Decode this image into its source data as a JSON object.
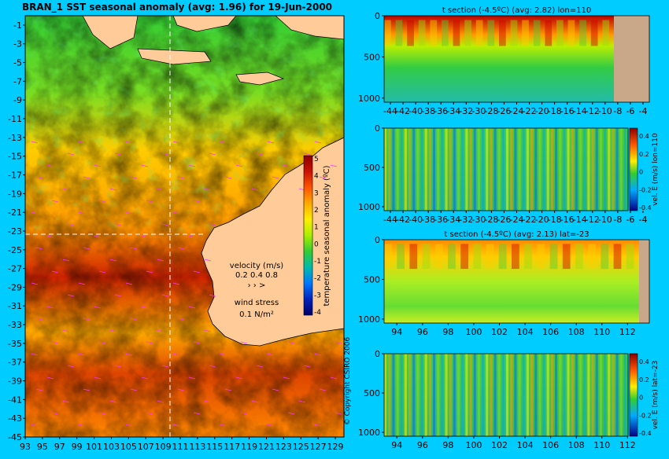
{
  "background_color": "#00ccff",
  "map": {
    "title": "BRAN_1 SST seasonal anomaly (avg: 1.96) for 19-Jun-2000",
    "lat_ticks": [
      "-1",
      "-3",
      "-5",
      "-7",
      "-9",
      "-11",
      "-13",
      "-15",
      "-17",
      "-19",
      "-21",
      "-23",
      "-25",
      "-27",
      "-29",
      "-31",
      "-33",
      "-35",
      "-37",
      "-39",
      "-41",
      "-43",
      "-45"
    ],
    "lon_ticks": [
      "93",
      "95",
      "97",
      "99",
      "101",
      "103",
      "105",
      "107",
      "109",
      "111",
      "113",
      "115",
      "117",
      "119",
      "121",
      "123",
      "125",
      "127",
      "129"
    ],
    "colorbar": {
      "label": "temperature seasonal anomaly (ºC)",
      "ticks": [
        "5",
        "4",
        "3",
        "2",
        "1",
        "0",
        "-1",
        "-2",
        "-3",
        "-4"
      ],
      "colors": [
        "#8b0000",
        "#cc1100",
        "#ff5500",
        "#ffaa00",
        "#ffee00",
        "#aaee00",
        "#33cc33",
        "#00bbaa",
        "#0077ff",
        "#0022bb",
        "#000066"
      ]
    },
    "legend": {
      "velocity_label": "velocity (m/s)",
      "velocity_values": "0.2 0.4 0.8",
      "wind_label": "wind stress",
      "wind_value": "0.1 N/m²"
    },
    "copyright": "© Copyright CSIRO 2006",
    "colors": {
      "land": "#ffcc99",
      "arrows": "#ff33ff",
      "section_line": "#ffffff"
    }
  },
  "sections": [
    {
      "id": "t-lon",
      "title": "t section (-4.5ºC) (avg: 2.82) lon=110",
      "y_ticks": [
        "0",
        "500",
        "1000"
      ],
      "x_ticks": [
        "-44",
        "-42",
        "-40",
        "-38",
        "-36",
        "-34",
        "-32",
        "-30",
        "-28",
        "-26",
        "-24",
        "-22",
        "-20",
        "-18",
        "-16",
        "-14",
        "-12",
        "-10",
        "-8",
        "-6",
        "-4"
      ],
      "side_label": ""
    },
    {
      "id": "v-lon",
      "title": "",
      "y_ticks": [
        "0",
        "500",
        "1000"
      ],
      "x_ticks": [
        "-44",
        "-42",
        "-40",
        "-38",
        "-36",
        "-34",
        "-32",
        "-30",
        "-28",
        "-26",
        "-24",
        "-22",
        "-20",
        "-18",
        "-16",
        "-14",
        "-12",
        "-10",
        "-8",
        "-6",
        "-4"
      ],
      "side_label": "vel. E (m/s) lon=110",
      "cbar_ticks": [
        "0.4",
        "0.2",
        "0",
        "-0.2",
        "-0.4"
      ]
    },
    {
      "id": "t-lat",
      "title": "t section (-4.5ºC) (avg: 2.13) lat=-23",
      "y_ticks": [
        "0",
        "500",
        "1000"
      ],
      "x_ticks": [
        "94",
        "96",
        "98",
        "100",
        "102",
        "104",
        "106",
        "108",
        "110",
        "112"
      ],
      "side_label": ""
    },
    {
      "id": "v-lat",
      "title": "",
      "y_ticks": [
        "0",
        "500",
        "1000"
      ],
      "x_ticks": [
        "94",
        "96",
        "98",
        "100",
        "102",
        "104",
        "106",
        "108",
        "110",
        "112"
      ],
      "side_label": "vel. E (m/s) lat=-23",
      "cbar_ticks": [
        "0.4",
        "0.2",
        "0",
        "-0.2",
        "-0.4"
      ]
    }
  ],
  "chart_data": [
    {
      "type": "heatmap",
      "title": "BRAN_1 SST seasonal anomaly (avg: 1.96) for 19-Jun-2000",
      "xlabel": "",
      "ylabel": "",
      "xlim": [
        93,
        130
      ],
      "ylim": [
        -45,
        0
      ],
      "colorbar_range": [
        -4,
        5
      ],
      "colorbar_label": "temperature seasonal anomaly (ºC)",
      "grid": false
    },
    {
      "type": "heatmap",
      "title": "t section (-4.5ºC) (avg: 2.82) lon=110",
      "xlim": [
        -45,
        -3
      ],
      "ylim": [
        1050,
        0
      ]
    },
    {
      "type": "heatmap",
      "title": "",
      "xlim": [
        -45,
        -3
      ],
      "ylim": [
        1050,
        0
      ],
      "colorbar_range": [
        -0.4,
        0.4
      ],
      "colorbar_label": "vel. E (m/s) lon=110"
    },
    {
      "type": "heatmap",
      "title": "t section (-4.5ºC) (avg: 2.13) lat=-23",
      "xlim": [
        93,
        113.7
      ],
      "ylim": [
        1050,
        0
      ]
    },
    {
      "type": "heatmap",
      "title": "",
      "xlim": [
        93,
        113.7
      ],
      "ylim": [
        1050,
        0
      ],
      "colorbar_range": [
        -0.4,
        0.4
      ],
      "colorbar_label": "vel. E (m/s) lat=-23"
    }
  ]
}
